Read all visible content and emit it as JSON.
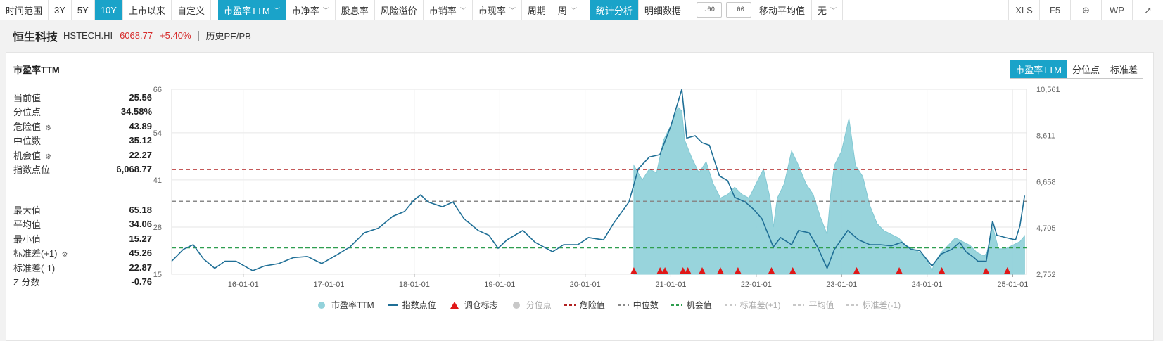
{
  "toolbar": {
    "time_range_label": "时间范围",
    "ranges": [
      "3Y",
      "5Y",
      "10Y",
      "上市以来",
      "自定义"
    ],
    "active_range": "10Y",
    "metrics": [
      {
        "label": "市盈率TTM",
        "dropdown": true,
        "active": true
      },
      {
        "label": "市净率",
        "dropdown": true
      },
      {
        "label": "股息率",
        "dropdown": false
      },
      {
        "label": "风险溢价",
        "dropdown": false
      },
      {
        "label": "市销率",
        "dropdown": true
      },
      {
        "label": "市现率",
        "dropdown": true
      }
    ],
    "period_label": "周期",
    "period_value": "周",
    "view_tabs": [
      "统计分析",
      "明细数据"
    ],
    "active_view": "统计分析",
    "decimal_up": ".00",
    "decimal_down": ".00",
    "moving_avg_label": "移动平均值",
    "moving_avg_value": "无",
    "right_buttons": [
      {
        "name": "export-excel",
        "text": "XLS"
      },
      {
        "name": "refresh",
        "text": "F5"
      },
      {
        "name": "add",
        "text": "⊕"
      },
      {
        "name": "export-wps",
        "text": "WP"
      },
      {
        "name": "share",
        "text": "↗"
      }
    ]
  },
  "header": {
    "name": "恒生科技",
    "code": "HSTECH.HI",
    "price": "6068.77",
    "change": "+5.40%",
    "sub": "历史PE/PB"
  },
  "panel": {
    "title": "市盈率TTM",
    "segments": [
      "市盈率TTM",
      "分位点",
      "标准差"
    ],
    "active_segment": "市盈率TTM"
  },
  "stats_top": [
    {
      "k": "当前值",
      "v": "25.56",
      "gear": false
    },
    {
      "k": "分位点",
      "v": "34.58%",
      "gear": false
    },
    {
      "k": "危险值",
      "v": "43.89",
      "gear": true
    },
    {
      "k": "中位数",
      "v": "35.12",
      "gear": false
    },
    {
      "k": "机会值",
      "v": "22.27",
      "gear": true
    },
    {
      "k": "指数点位",
      "v": "6,068.77",
      "gear": false
    }
  ],
  "stats_bottom": [
    {
      "k": "最大值",
      "v": "65.18",
      "gear": false
    },
    {
      "k": "平均值",
      "v": "34.06",
      "gear": false
    },
    {
      "k": "最小值",
      "v": "15.27",
      "gear": false
    },
    {
      "k": "标准差(+1)",
      "v": "45.26",
      "gear": true
    },
    {
      "k": "标准差(-1)",
      "v": "22.87",
      "gear": false
    },
    {
      "k": "Z 分数",
      "v": "-0.76",
      "gear": false
    }
  ],
  "colors": {
    "accent": "#1aa3c9",
    "pe_fill": "#93d2db",
    "index_line": "#1f6f96",
    "danger": "#b22222",
    "median": "#888888",
    "opportunity": "#2e9e4f",
    "marker": "#e01818"
  },
  "chart_data": {
    "type": "area",
    "y_left_ticks": [
      "15",
      "28",
      "41",
      "54",
      "66"
    ],
    "y_left_range": [
      15,
      66
    ],
    "y_right_ticks": [
      "2,752",
      "4,705",
      "6,658",
      "8,611",
      "10,561"
    ],
    "y_right_range": [
      2752,
      10561
    ],
    "x_ticks": [
      "16-01-01",
      "17-01-01",
      "18-01-01",
      "19-01-01",
      "20-01-01",
      "21-01-01",
      "22-01-01",
      "23-01-01",
      "24-01-01",
      "25-01-01"
    ],
    "x_range": [
      "2015-03-01",
      "2025-03-01"
    ],
    "reference_lines": {
      "danger": 43.89,
      "median": 35.12,
      "opportunity": 22.27
    },
    "series": [
      {
        "name": "市盈率TTM",
        "x": [
          "2020-07-27",
          "2020-09-01",
          "2020-10-01",
          "2020-11-01",
          "2020-12-01",
          "2021-01-01",
          "2021-02-01",
          "2021-02-17",
          "2021-03-01",
          "2021-04-01",
          "2021-05-01",
          "2021-06-01",
          "2021-07-01",
          "2021-08-01",
          "2021-09-01",
          "2021-10-01",
          "2021-11-01",
          "2021-12-01",
          "2022-01-01",
          "2022-02-01",
          "2022-03-01",
          "2022-03-15",
          "2022-04-01",
          "2022-05-01",
          "2022-06-01",
          "2022-07-01",
          "2022-08-01",
          "2022-09-01",
          "2022-10-01",
          "2022-10-31",
          "2022-11-15",
          "2022-12-01",
          "2023-01-01",
          "2023-02-01",
          "2023-03-01",
          "2023-04-01",
          "2023-05-01",
          "2023-06-01",
          "2023-07-01",
          "2023-08-01",
          "2023-09-01",
          "2023-10-01",
          "2023-11-01",
          "2023-12-01",
          "2024-01-01",
          "2024-01-22",
          "2024-02-01",
          "2024-03-01",
          "2024-04-01",
          "2024-05-01",
          "2024-06-01",
          "2024-07-01",
          "2024-08-01",
          "2024-09-01",
          "2024-09-13",
          "2024-10-08",
          "2024-11-01",
          "2024-12-01",
          "2025-01-01",
          "2025-02-01",
          "2025-02-21"
        ],
        "values": [
          45.0,
          41.0,
          44.0,
          43.0,
          52.0,
          56.0,
          61.0,
          60.0,
          52.0,
          47.0,
          43.0,
          46.0,
          40.0,
          36.0,
          37.0,
          39.0,
          37.0,
          36.0,
          40.0,
          44.0,
          36.0,
          28.0,
          36.0,
          40.0,
          49.0,
          45.0,
          40.0,
          37.0,
          31.0,
          26.0,
          37.0,
          45.0,
          49.0,
          58.0,
          45.0,
          42.0,
          34.0,
          29.0,
          27.0,
          26.0,
          25.0,
          23.0,
          22.0,
          21.0,
          19.0,
          16.0,
          18.0,
          21.0,
          23.0,
          25.0,
          24.0,
          23.0,
          21.0,
          20.0,
          21.0,
          28.0,
          22.0,
          22.0,
          23.0,
          24.0,
          25.56
        ]
      },
      {
        "name": "指数点位",
        "x": [
          "2015-03-01",
          "2015-04-20",
          "2015-06-01",
          "2015-07-15",
          "2015-09-01",
          "2015-10-15",
          "2015-12-01",
          "2016-02-10",
          "2016-04-01",
          "2016-06-01",
          "2016-08-01",
          "2016-10-01",
          "2016-12-01",
          "2017-02-01",
          "2017-04-01",
          "2017-06-01",
          "2017-08-01",
          "2017-10-01",
          "2017-11-20",
          "2018-01-01",
          "2018-01-28",
          "2018-03-01",
          "2018-05-01",
          "2018-06-15",
          "2018-08-01",
          "2018-10-01",
          "2018-11-15",
          "2018-12-25",
          "2019-02-01",
          "2019-04-10",
          "2019-06-01",
          "2019-08-15",
          "2019-10-01",
          "2019-12-01",
          "2020-01-15",
          "2020-03-19",
          "2020-05-01",
          "2020-07-06",
          "2020-08-15",
          "2020-10-01",
          "2020-11-15",
          "2021-01-01",
          "2021-02-17",
          "2021-03-10",
          "2021-04-15",
          "2021-05-15",
          "2021-06-15",
          "2021-07-28",
          "2021-09-01",
          "2021-10-01",
          "2021-11-15",
          "2021-12-20",
          "2022-01-25",
          "2022-03-15",
          "2022-04-15",
          "2022-06-01",
          "2022-07-01",
          "2022-08-15",
          "2022-09-20",
          "2022-10-31",
          "2022-12-01",
          "2023-01-27",
          "2023-03-15",
          "2023-05-01",
          "2023-06-15",
          "2023-08-01",
          "2023-09-15",
          "2023-10-25",
          "2023-12-01",
          "2024-01-22",
          "2024-03-01",
          "2024-04-15",
          "2024-05-20",
          "2024-06-15",
          "2024-07-20",
          "2024-08-05",
          "2024-09-10",
          "2024-10-07",
          "2024-10-25",
          "2024-12-01",
          "2025-01-13",
          "2025-02-01",
          "2025-02-21"
        ],
        "values": [
          3300,
          3800,
          4000,
          3400,
          3000,
          3300,
          3300,
          2900,
          3100,
          3200,
          3450,
          3500,
          3200,
          3550,
          3900,
          4500,
          4700,
          5200,
          5400,
          5900,
          6100,
          5800,
          5600,
          5800,
          5100,
          4600,
          4400,
          3850,
          4200,
          4600,
          4100,
          3700,
          4000,
          4000,
          4300,
          4200,
          4900,
          5800,
          7200,
          7700,
          7800,
          9000,
          10561,
          8500,
          8600,
          8300,
          8200,
          6900,
          6700,
          6000,
          5800,
          5500,
          5100,
          3900,
          4300,
          4000,
          4600,
          4500,
          3900,
          3000,
          3800,
          4600,
          4200,
          4000,
          4000,
          3950,
          4100,
          3800,
          3750,
          3100,
          3600,
          3800,
          4100,
          3700,
          3450,
          3300,
          3300,
          5000,
          4400,
          4300,
          4200,
          4800,
          6068.77
        ]
      }
    ],
    "rebalance_marks": [
      "2020-07-27",
      "2020-11-16",
      "2020-12-07",
      "2021-02-22",
      "2021-03-15",
      "2021-05-15",
      "2021-08-01",
      "2021-10-15",
      "2022-03-07",
      "2022-06-06",
      "2023-03-06",
      "2023-09-04",
      "2024-03-04",
      "2024-09-09",
      "2024-12-09"
    ],
    "legend": [
      {
        "label": "市盈率TTM",
        "kind": "circle",
        "color": "#93d2db",
        "dim": false
      },
      {
        "label": "指数点位",
        "kind": "line",
        "color": "#1f6f96",
        "dim": false
      },
      {
        "label": "调仓标志",
        "kind": "triangle",
        "color": "#e01818",
        "dim": false
      },
      {
        "label": "分位点",
        "kind": "circle",
        "color": "#c8c8c8",
        "dim": true
      },
      {
        "label": "危险值",
        "kind": "dash",
        "color": "#b22222",
        "dim": false
      },
      {
        "label": "中位数",
        "kind": "dash",
        "color": "#888888",
        "dim": false
      },
      {
        "label": "机会值",
        "kind": "dash",
        "color": "#2e9e4f",
        "dim": false
      },
      {
        "label": "标准差(+1)",
        "kind": "dash",
        "color": "#c8c8c8",
        "dim": true
      },
      {
        "label": "平均值",
        "kind": "dash",
        "color": "#c8c8c8",
        "dim": true
      },
      {
        "label": "标准差(-1)",
        "kind": "dash",
        "color": "#c8c8c8",
        "dim": true
      }
    ]
  }
}
